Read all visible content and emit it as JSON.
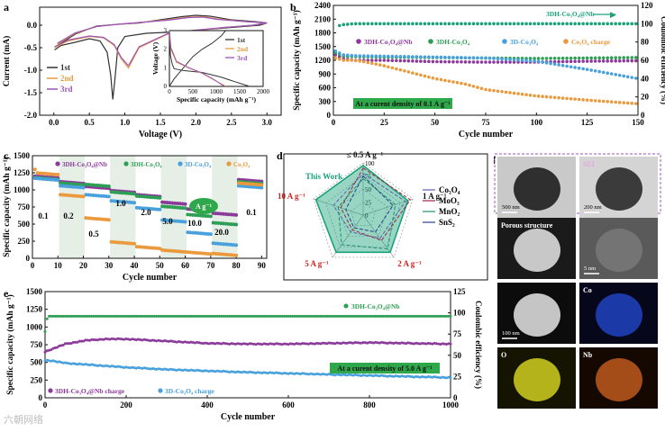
{
  "watermark": "六朝网络",
  "colors": {
    "purple": "#8b3a9a",
    "green": "#2e9e54",
    "blue": "#48a0dc",
    "orange": "#ea9a3c",
    "teal": "#1aa37a",
    "gray": "#5a5a5a",
    "cyc1": "#333333",
    "cyc2": "#e59a42",
    "cyc3": "#9c55b8",
    "cell_green": "#2ea84a",
    "red": "#d62020"
  },
  "chart_data": [
    {
      "id": "a",
      "type": "line",
      "panel_label": "a",
      "xlabel": "Voltage (V)",
      "ylabel": "Current (mA)",
      "xlim": [
        -0.2,
        3.2
      ],
      "ylim": [
        -2.0,
        0.4
      ],
      "xticks": [
        "0.0",
        "0.5",
        "1.0",
        "1.5",
        "2.0",
        "2.5",
        "3.0"
      ],
      "yticks": [
        "-2.0",
        "-1.5",
        "-1.0",
        "-0.5",
        "0.0"
      ],
      "legend": [
        "1st",
        "2nd",
        "3rd"
      ],
      "series": [
        {
          "name": "1st",
          "x": [
            0.01,
            0.1,
            0.3,
            0.5,
            0.65,
            0.75,
            0.8,
            0.83,
            0.86,
            0.9,
            1.0,
            1.3,
            1.7,
            2.1,
            2.5,
            2.9,
            3.0,
            2.9,
            2.5,
            2.2,
            2.0,
            1.8,
            1.5,
            1.2,
            0.9,
            0.6,
            0.3,
            0.05
          ],
          "y": [
            -0.55,
            -0.45,
            -0.38,
            -0.3,
            -0.35,
            -0.6,
            -1.1,
            -1.65,
            -1.2,
            -0.5,
            -0.25,
            -0.18,
            -0.15,
            -0.1,
            -0.05,
            0.0,
            0.05,
            0.07,
            0.12,
            0.2,
            0.22,
            0.19,
            0.12,
            0.05,
            0.02,
            -0.02,
            -0.2,
            -0.45
          ]
        },
        {
          "name": "2nd",
          "x": [
            0.01,
            0.2,
            0.5,
            0.7,
            0.85,
            0.95,
            1.05,
            1.2,
            1.6,
            2.0,
            2.4,
            2.8,
            3.0,
            2.7,
            2.3,
            2.1,
            1.9,
            1.6,
            1.2,
            0.9,
            0.6,
            0.3,
            0.05
          ],
          "y": [
            -0.5,
            -0.35,
            -0.25,
            -0.28,
            -0.45,
            -0.75,
            -0.95,
            -0.5,
            -0.2,
            -0.12,
            -0.05,
            0.0,
            0.05,
            0.08,
            0.14,
            0.19,
            0.18,
            0.12,
            0.06,
            0.02,
            -0.03,
            -0.18,
            -0.42
          ]
        },
        {
          "name": "3rd",
          "x": [
            0.01,
            0.2,
            0.5,
            0.7,
            0.85,
            0.95,
            1.05,
            1.2,
            1.6,
            2.0,
            2.4,
            2.8,
            3.0,
            2.7,
            2.3,
            2.1,
            1.9,
            1.6,
            1.2,
            0.9,
            0.6,
            0.3,
            0.05
          ],
          "y": [
            -0.48,
            -0.33,
            -0.24,
            -0.27,
            -0.43,
            -0.72,
            -0.9,
            -0.48,
            -0.19,
            -0.11,
            -0.05,
            0.0,
            0.05,
            0.08,
            0.13,
            0.18,
            0.17,
            0.11,
            0.06,
            0.02,
            -0.03,
            -0.17,
            -0.4
          ]
        }
      ],
      "inset": {
        "type": "line",
        "xlabel": "Specific capacity (mAh g⁻¹)",
        "ylabel": "Voltage (V)",
        "xlim": [
          0,
          2000
        ],
        "ylim": [
          0,
          3
        ],
        "xticks": [
          "0",
          "500",
          "1000",
          "1500",
          "2000"
        ],
        "yticks": [
          "0",
          "1",
          "2",
          "3"
        ],
        "legend": [
          "1st",
          "2nd",
          "3rd"
        ],
        "series": [
          {
            "name": "1st",
            "x": [
              0,
              20,
              60,
              100,
              300,
              700,
              1100,
              1400,
              1650,
              1700
            ],
            "y": [
              3.0,
              1.7,
              1.2,
              0.95,
              0.85,
              0.75,
              0.5,
              0.25,
              0.05,
              0.01
            ]
          },
          {
            "name": "1st charge",
            "x": [
              0,
              100,
              300,
              500,
              700,
              900,
              1100,
              1200
            ],
            "y": [
              0.01,
              0.4,
              1.0,
              1.6,
              2.0,
              2.3,
              2.7,
              3.0
            ]
          },
          {
            "name": "2nd",
            "x": [
              0,
              30,
              150,
              400,
              700,
              950,
              1150,
              1200
            ],
            "y": [
              3.0,
              2.0,
              1.3,
              1.0,
              0.7,
              0.35,
              0.08,
              0.01
            ]
          },
          {
            "name": "3rd",
            "x": [
              0,
              30,
              150,
              400,
              700,
              950,
              1120,
              1180
            ],
            "y": [
              3.0,
              2.1,
              1.35,
              1.02,
              0.72,
              0.37,
              0.09,
              0.01
            ]
          }
        ]
      }
    },
    {
      "id": "b",
      "type": "scatter",
      "panel_label": "b",
      "xlabel": "Cycle number",
      "ylabel": "Specific capacity (mAh g⁻¹)",
      "y2label": "Coulombic efficiency (%)",
      "xlim": [
        0,
        150
      ],
      "ylim": [
        0,
        2400
      ],
      "y2lim": [
        0,
        120
      ],
      "xticks": [
        "0",
        "25",
        "50",
        "75",
        "100",
        "125",
        "150"
      ],
      "yticks": [
        "0",
        "300",
        "600",
        "900",
        "1200",
        "1500",
        "1800",
        "2100",
        "2400"
      ],
      "y2ticks": [
        "0",
        "20",
        "40",
        "60",
        "80",
        "100",
        "120"
      ],
      "ce_label": "3DH-Co₃O₄@Nb",
      "legend": [
        "3DH-Co₃O₄@Nb",
        "3DH-Co₃O₄",
        "3D-Co₃O₄",
        "Co₃O₄ charge"
      ],
      "annotation": "At a curent density of 0.1 A g⁻¹",
      "series": [
        {
          "name": "CE",
          "axis": "y2",
          "x": [
            1,
            3,
            5,
            10,
            25,
            50,
            75,
            100,
            125,
            150
          ],
          "values": [
            70,
            98,
            99,
            100,
            100,
            100,
            100,
            100,
            100,
            100
          ]
        },
        {
          "name": "3DH-Co₃O₄@Nb",
          "x": [
            1,
            5,
            10,
            25,
            50,
            75,
            100,
            125,
            150
          ],
          "values": [
            1320,
            1230,
            1200,
            1200,
            1170,
            1160,
            1160,
            1180,
            1190
          ]
        },
        {
          "name": "3DH-Co₃O₄",
          "x": [
            1,
            5,
            10,
            25,
            50,
            75,
            100,
            125,
            150
          ],
          "values": [
            1370,
            1290,
            1280,
            1270,
            1260,
            1250,
            1240,
            1250,
            1260
          ]
        },
        {
          "name": "3D-Co₃O₄",
          "x": [
            1,
            5,
            10,
            25,
            50,
            75,
            100,
            125,
            150
          ],
          "values": [
            1400,
            1320,
            1300,
            1290,
            1270,
            1250,
            1180,
            1000,
            800
          ]
        },
        {
          "name": "Co₃O₄ charge",
          "x": [
            1,
            5,
            10,
            15,
            25,
            50,
            65,
            75,
            100,
            125,
            150
          ],
          "values": [
            1250,
            1200,
            1200,
            1170,
            1080,
            800,
            680,
            560,
            420,
            330,
            250
          ]
        }
      ]
    },
    {
      "id": "c",
      "type": "scatter",
      "panel_label": "c",
      "xlabel": "Cycle number",
      "ylabel": "Specific capacity (mAh g⁻¹)",
      "xlim": [
        0,
        92
      ],
      "ylim": [
        0,
        1500
      ],
      "xticks": [
        "0",
        "10",
        "20",
        "30",
        "40",
        "50",
        "60",
        "70",
        "80",
        "90"
      ],
      "yticks": [
        "0",
        "250",
        "500",
        "750",
        "1000",
        "1250",
        "1500"
      ],
      "legend": [
        "3DH-Co₃O₄@Nb",
        "3DH-Co₃O₄",
        "3D-Co₃O₄",
        "Co₃O₄"
      ],
      "rate_labels": [
        "0.1",
        "0.2",
        "0.5",
        "1.0",
        "2.0",
        "5.0",
        "10.0",
        "20.0",
        "0.1"
      ],
      "unit_badge": "A g⁻¹",
      "segments": [
        [
          1,
          10
        ],
        [
          11,
          20
        ],
        [
          21,
          30
        ],
        [
          31,
          40
        ],
        [
          41,
          50
        ],
        [
          51,
          60
        ],
        [
          61,
          70
        ],
        [
          71,
          80
        ],
        [
          81,
          90
        ]
      ],
      "series": [
        {
          "name": "3DH-Co₃O₄@Nb",
          "values": [
            1200,
            1120,
            1050,
            990,
            930,
            820,
            720,
            660,
            1150
          ]
        },
        {
          "name": "3DH-Co₃O₄",
          "values": [
            1180,
            1100,
            1080,
            970,
            910,
            760,
            640,
            520,
            1120
          ]
        },
        {
          "name": "3D-Co₃O₄",
          "values": [
            1170,
            1060,
            930,
            840,
            740,
            560,
            380,
            220,
            1060
          ]
        },
        {
          "name": "Co₃O₄",
          "values": [
            1250,
            930,
            590,
            240,
            170,
            120,
            90,
            70,
            1100
          ]
        }
      ]
    },
    {
      "id": "d",
      "type": "radar",
      "panel_label": "d",
      "axes": [
        "≤ 0.5 A g⁻¹",
        "1 A g⁻¹",
        "2 A g⁻¹",
        "5 A g⁻¹",
        "10 A g⁻¹"
      ],
      "rlim": [
        0,
        100
      ],
      "rticks": [
        "0",
        "25",
        "50",
        "75",
        "100"
      ],
      "this_work_label": "This Work",
      "legend": [
        "Co₃O₄",
        "MoO₃",
        "MnO₂",
        "SnS₂"
      ],
      "series": [
        {
          "name": "This Work",
          "values": [
            95,
            90,
            88,
            88,
            95
          ]
        },
        {
          "name": "Co₃O₄",
          "values": [
            80,
            85,
            55,
            40,
            60
          ]
        },
        {
          "name": "MoO₃",
          "values": [
            90,
            95,
            60,
            35,
            45
          ]
        },
        {
          "name": "MnO₂",
          "values": [
            70,
            65,
            80,
            70,
            50
          ]
        },
        {
          "name": "SnS₂",
          "values": [
            75,
            60,
            40,
            30,
            35
          ]
        }
      ]
    },
    {
      "id": "e",
      "type": "scatter",
      "panel_label": "e",
      "xlabel": "Cycle number",
      "ylabel": "Specific capacity (mAh g⁻¹)",
      "y2label": "Coulombic efficiency (%)",
      "xlim": [
        0,
        1000
      ],
      "ylim": [
        0,
        1500
      ],
      "y2lim": [
        0,
        125
      ],
      "xticks": [
        "0",
        "200",
        "400",
        "600",
        "800",
        "1000"
      ],
      "yticks": [
        "0",
        "250",
        "500",
        "750",
        "1000",
        "1250",
        "1500"
      ],
      "y2ticks": [
        "0",
        "25",
        "50",
        "75",
        "100",
        "125"
      ],
      "ce_label": "3DH-Co₃O₄@Nb",
      "legend": [
        "3DH-Co₃O₄@Nb charge",
        "3D-Co₃O₄ charge"
      ],
      "annotation": "At a curent density of 5.0 A g⁻¹",
      "series": [
        {
          "name": "CE",
          "axis": "y2",
          "x": [
            0,
            5,
            10,
            100,
            300,
            500,
            700,
            900,
            1000
          ],
          "values": [
            80,
            95,
            98,
            98,
            98,
            98,
            98,
            98,
            98
          ]
        },
        {
          "name": "3DH-Co₃O₄@Nb charge",
          "x": [
            0,
            50,
            100,
            150,
            200,
            300,
            400,
            500,
            600,
            700,
            800,
            900,
            1000
          ],
          "values": [
            650,
            760,
            810,
            830,
            830,
            800,
            770,
            760,
            760,
            770,
            780,
            770,
            760
          ]
        },
        {
          "name": "3D-Co₃O₄ charge",
          "x": [
            0,
            20,
            50,
            100,
            200,
            300,
            400,
            500,
            600,
            700,
            800,
            900,
            1000
          ],
          "values": [
            530,
            520,
            490,
            470,
            430,
            400,
            380,
            360,
            345,
            330,
            315,
            300,
            285
          ]
        }
      ]
    }
  ],
  "micrographs": {
    "panel_label": "f",
    "tiles": [
      {
        "label": "",
        "scale": "500 nm"
      },
      {
        "label": "SEI",
        "scale": "200 nm"
      },
      {
        "label": "Porous structure",
        "scale": ""
      },
      {
        "label": "",
        "scale": "5 nm"
      },
      {
        "label": "",
        "scale": "100 nm"
      },
      {
        "label": "Co",
        "scale": ""
      },
      {
        "label": "O",
        "scale": ""
      },
      {
        "label": "Nb",
        "scale": ""
      }
    ]
  }
}
